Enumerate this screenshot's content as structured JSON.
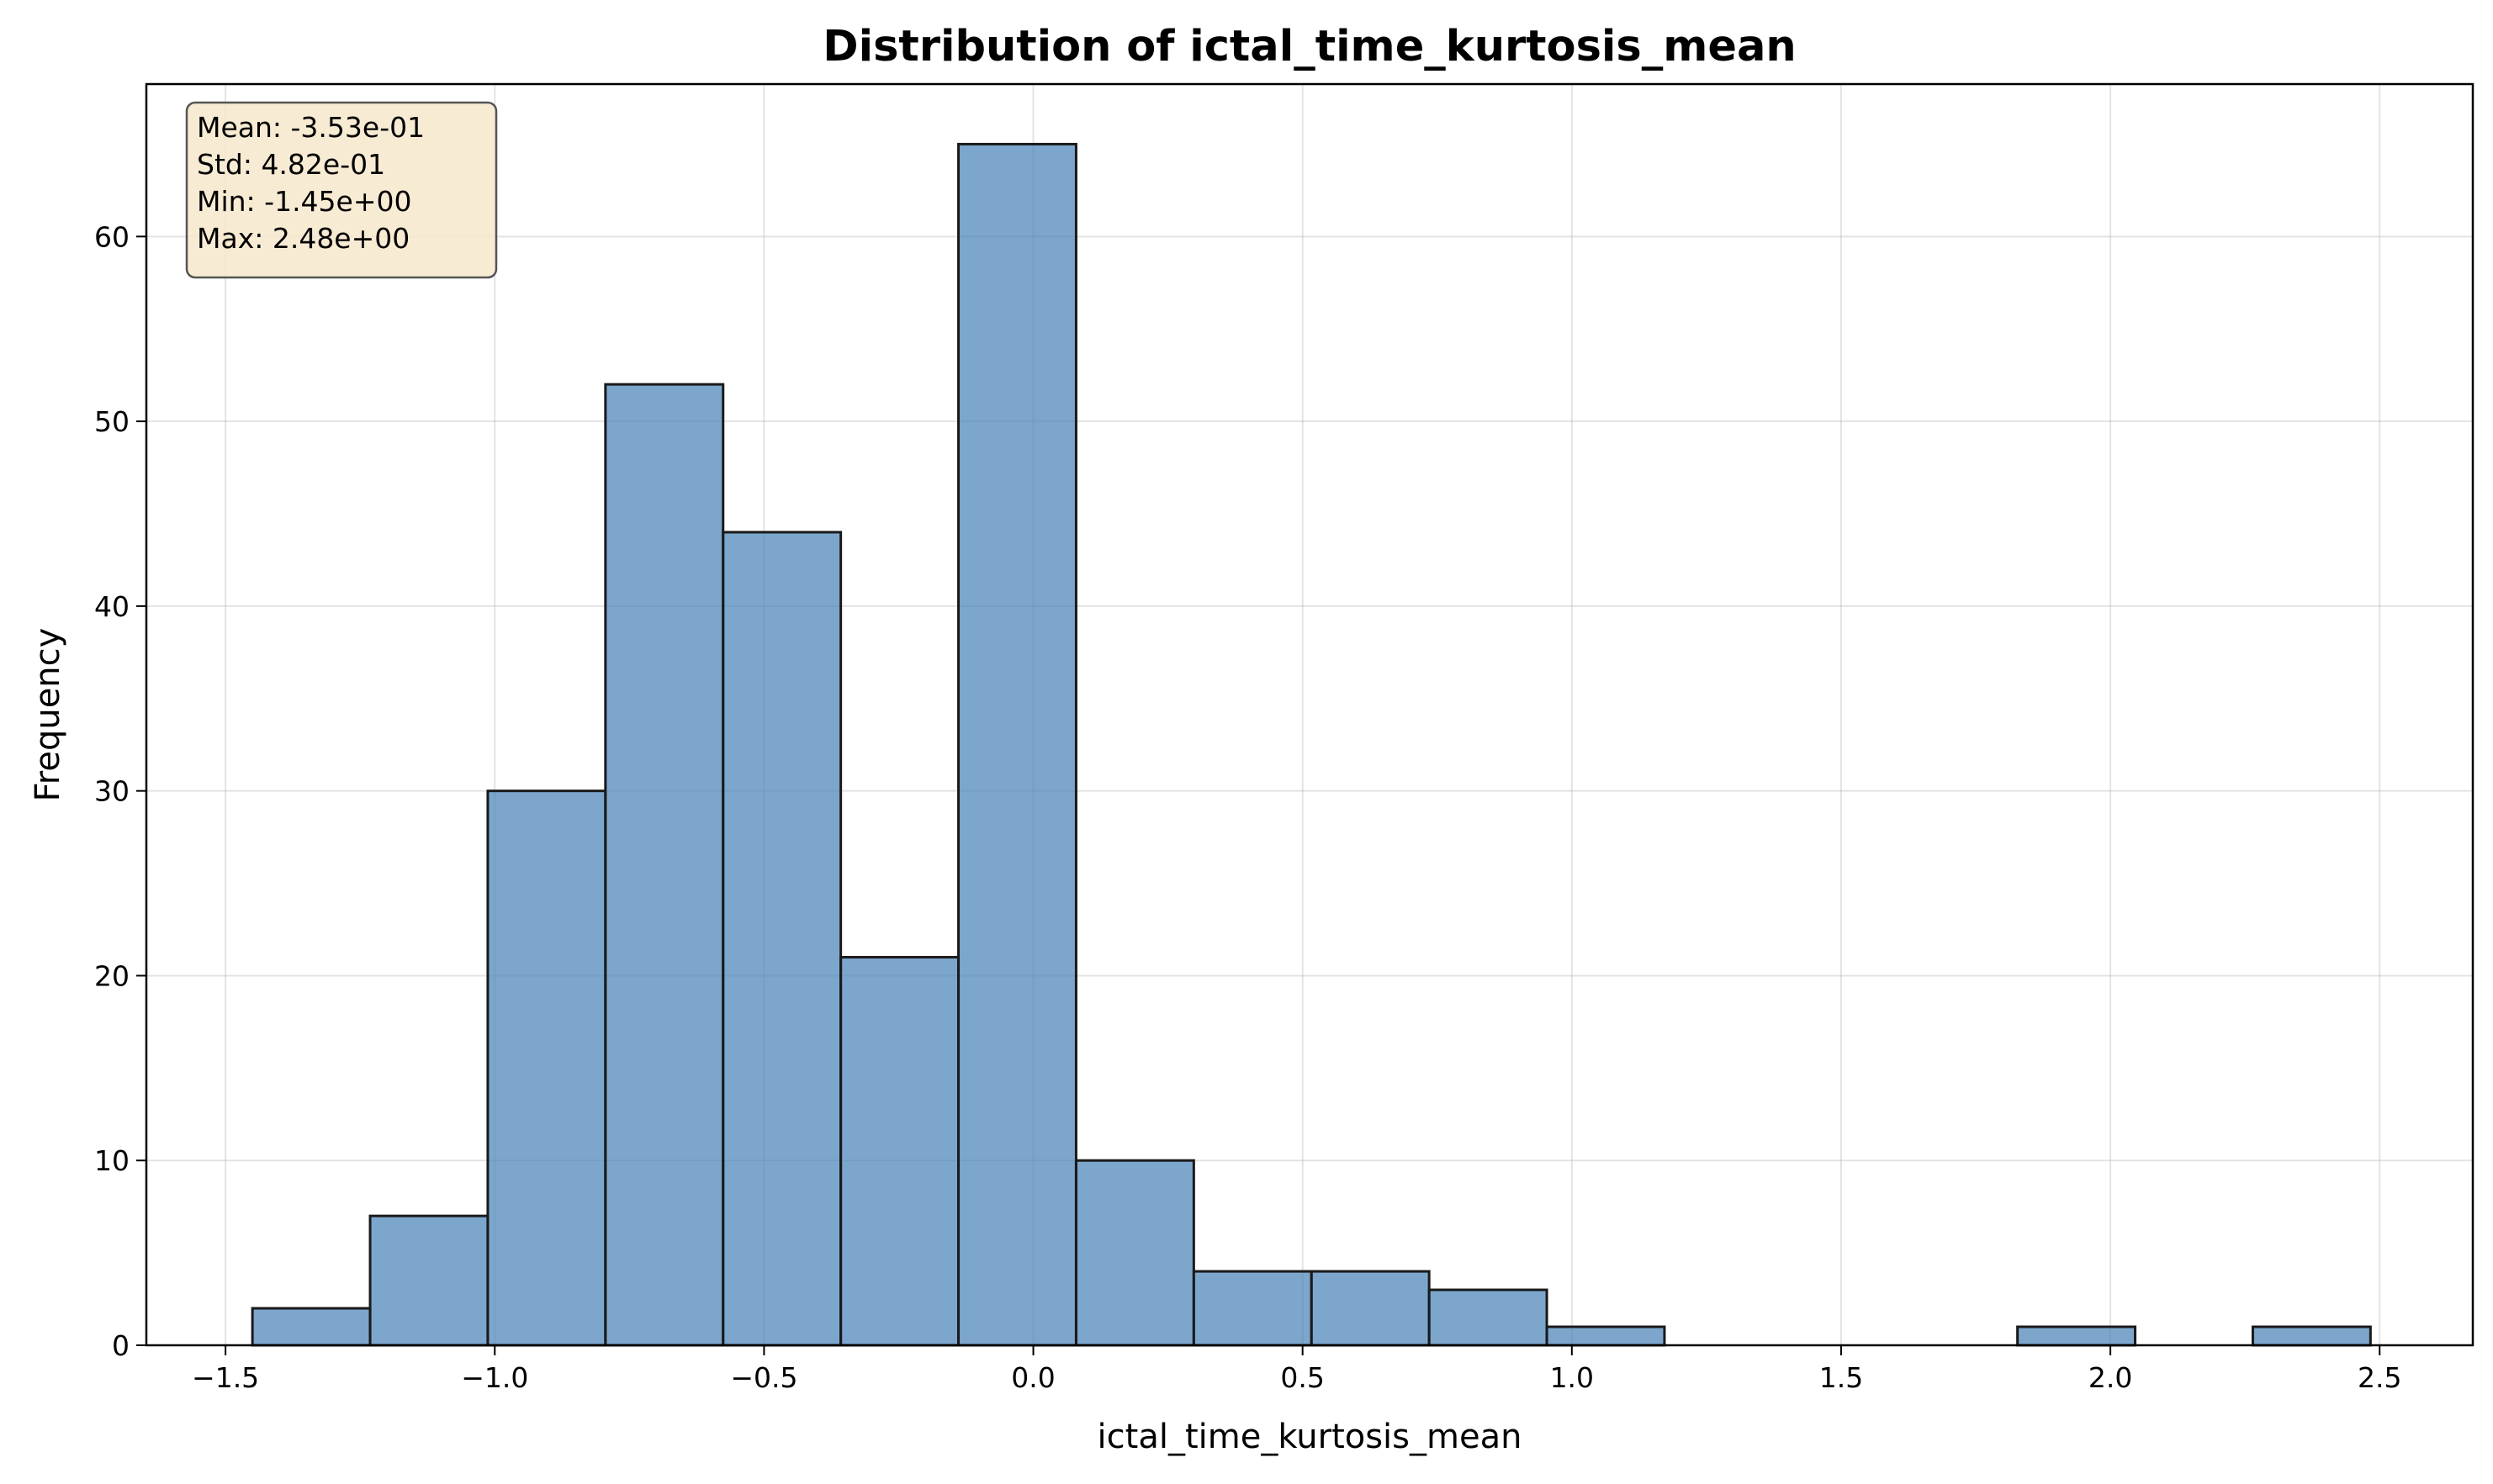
{
  "chart_data": {
    "type": "bar",
    "title": "Distribution of ictal_time_kurtosis_mean",
    "xlabel": "ictal_time_kurtosis_mean",
    "ylabel": "Frequency",
    "xlim": [
      -1.647,
      2.673
    ],
    "ylim": [
      0,
      68.25
    ],
    "grid": true,
    "bar_color": "#4a83b8",
    "bar_opacity": 0.72,
    "edge_color": "#1a1a1a",
    "bins": {
      "start": -1.45,
      "width": 0.2185,
      "counts": [
        2,
        7,
        30,
        52,
        44,
        21,
        65,
        10,
        4,
        4,
        3,
        1,
        0,
        0,
        0,
        1,
        0,
        1
      ]
    },
    "x_ticks": [
      {
        "value": -1.5,
        "label": "−1.5"
      },
      {
        "value": -1.0,
        "label": "−1.0"
      },
      {
        "value": -0.5,
        "label": "−0.5"
      },
      {
        "value": 0.0,
        "label": "0.0"
      },
      {
        "value": 0.5,
        "label": "0.5"
      },
      {
        "value": 1.0,
        "label": "1.0"
      },
      {
        "value": 1.5,
        "label": "1.5"
      },
      {
        "value": 2.0,
        "label": "2.0"
      },
      {
        "value": 2.5,
        "label": "2.5"
      }
    ],
    "y_ticks": [
      {
        "value": 0,
        "label": "0"
      },
      {
        "value": 10,
        "label": "10"
      },
      {
        "value": 20,
        "label": "20"
      },
      {
        "value": 30,
        "label": "30"
      },
      {
        "value": 40,
        "label": "40"
      },
      {
        "value": 50,
        "label": "50"
      },
      {
        "value": 60,
        "label": "60"
      }
    ],
    "stats_box": {
      "placement": "top-left",
      "background": "#f7e8cc",
      "lines": [
        "Mean: -3.53e-01",
        "Std: 4.82e-01",
        "Min: -1.45e+00",
        "Max: 2.48e+00"
      ]
    }
  }
}
